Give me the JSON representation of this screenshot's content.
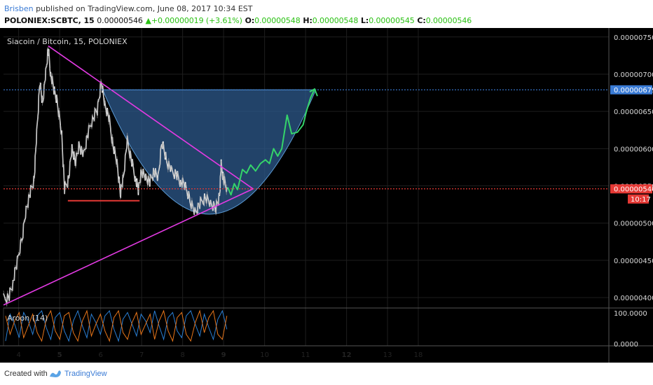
{
  "header": {
    "author": "Brisben",
    "published_text": "published on TradingView.com, June 08, 2017 10:34 EST",
    "symbol_label": "POLONIEX:SCBTC, 15",
    "last_price": "0.00000546",
    "change": "+0.00000019 (+3.61%)",
    "o_label": "O:",
    "o_value": "0.00000548",
    "h_label": "H:",
    "h_value": "0.00000548",
    "l_label": "L:",
    "l_value": "0.00000545",
    "c_label": "C:",
    "c_value": "0.00000546"
  },
  "chart_data": [
    {
      "type": "candlestick",
      "title": "Siacoin / Bitcoin, 15, POLONIEX",
      "x_tick_labels": [
        "4",
        "5",
        "6",
        "7",
        "8",
        "9",
        "10",
        "11",
        "12",
        "13",
        "18"
      ],
      "y_tick_labels": [
        "0.00000750",
        "0.00000700",
        "0.00000650",
        "0.00000600",
        "0.00000550",
        "0.00000500",
        "0.00000450",
        "0.00000400"
      ],
      "ylim": [
        3.86e-06,
        7.62e-06
      ],
      "xlim": [
        3.63,
        18.4
      ],
      "current_price_label": "0.00000546",
      "countdown_label": "10:17",
      "target_label": "0.00000679",
      "current_price": 5.46e-06,
      "target_price": 6.79e-06,
      "price_path": [
        [
          3.63,
          3.98e-06
        ],
        [
          3.76,
          4e-06
        ],
        [
          3.86,
          4.2e-06
        ],
        [
          3.95,
          4.45e-06
        ],
        [
          4.08,
          4.78e-06
        ],
        [
          4.18,
          5.18e-06
        ],
        [
          4.28,
          5.4e-06
        ],
        [
          4.38,
          5.6e-06
        ],
        [
          4.44,
          6.2e-06
        ],
        [
          4.52,
          6.9e-06
        ],
        [
          4.58,
          6.6e-06
        ],
        [
          4.66,
          7e-06
        ],
        [
          4.72,
          7.35e-06
        ],
        [
          4.78,
          7e-06
        ],
        [
          4.86,
          6.8e-06
        ],
        [
          4.95,
          6.6e-06
        ],
        [
          5.05,
          6.2e-06
        ],
        [
          5.12,
          5.45e-06
        ],
        [
          5.22,
          5.6e-06
        ],
        [
          5.3,
          6e-06
        ],
        [
          5.38,
          5.82e-06
        ],
        [
          5.48,
          6.05e-06
        ],
        [
          5.58,
          5.9e-06
        ],
        [
          5.68,
          6.18e-06
        ],
        [
          5.8,
          6.4e-06
        ],
        [
          5.92,
          6.52e-06
        ],
        [
          6.02,
          6.9e-06
        ],
        [
          6.1,
          6.6e-06
        ],
        [
          6.2,
          6.42e-06
        ],
        [
          6.3,
          6.05e-06
        ],
        [
          6.4,
          5.8e-06
        ],
        [
          6.48,
          5.4e-06
        ],
        [
          6.55,
          5.6e-06
        ],
        [
          6.65,
          6.1e-06
        ],
        [
          6.75,
          5.85e-06
        ],
        [
          6.85,
          5.6e-06
        ],
        [
          6.92,
          5.45e-06
        ],
        [
          7.0,
          5.7e-06
        ],
        [
          7.1,
          5.62e-06
        ],
        [
          7.2,
          5.55e-06
        ],
        [
          7.3,
          5.7e-06
        ],
        [
          7.4,
          5.6e-06
        ],
        [
          7.5,
          6.1e-06
        ],
        [
          7.6,
          5.85e-06
        ],
        [
          7.72,
          5.7e-06
        ],
        [
          7.85,
          5.65e-06
        ],
        [
          7.95,
          5.55e-06
        ],
        [
          8.05,
          5.52e-06
        ],
        [
          8.18,
          5.3e-06
        ],
        [
          8.3,
          5.15e-06
        ],
        [
          8.42,
          5.25e-06
        ],
        [
          8.55,
          5.35e-06
        ],
        [
          8.68,
          5.25e-06
        ],
        [
          8.8,
          5.2e-06
        ],
        [
          8.9,
          5.35e-06
        ],
        [
          8.94,
          5.78e-06
        ],
        [
          9.0,
          5.58e-06
        ],
        [
          9.08,
          5.48e-06
        ]
      ],
      "trendline_upper": [
        [
          4.72,
          7.38e-06
        ],
        [
          9.72,
          5.46e-06
        ]
      ],
      "trendline_lower": [
        [
          3.63,
          3.9e-06
        ],
        [
          9.72,
          5.46e-06
        ]
      ],
      "support_line": [
        [
          5.2,
          5.3e-06
        ],
        [
          6.95,
          5.3e-06
        ]
      ],
      "rounded_bottom_arc": {
        "x_start": 6.05,
        "x_end": 11.25,
        "top": 6.79e-06,
        "bottom": 5.12e-06
      },
      "forecast_path": [
        [
          9.1,
          5.48e-06
        ],
        [
          9.18,
          5.38e-06
        ],
        [
          9.26,
          5.53e-06
        ],
        [
          9.34,
          5.45e-06
        ],
        [
          9.46,
          5.72e-06
        ],
        [
          9.56,
          5.67e-06
        ],
        [
          9.66,
          5.78e-06
        ],
        [
          9.78,
          5.7e-06
        ],
        [
          9.9,
          5.8e-06
        ],
        [
          10.02,
          5.85e-06
        ],
        [
          10.12,
          5.8e-06
        ],
        [
          10.22,
          6e-06
        ],
        [
          10.32,
          5.9e-06
        ],
        [
          10.42,
          6e-06
        ],
        [
          10.55,
          6.45e-06
        ],
        [
          10.66,
          6.2e-06
        ],
        [
          10.8,
          6.22e-06
        ],
        [
          10.94,
          6.32e-06
        ],
        [
          11.02,
          6.5e-06
        ],
        [
          11.12,
          6.68e-06
        ],
        [
          11.22,
          6.8e-06
        ]
      ]
    },
    {
      "type": "line",
      "title": "Aroon (14)",
      "y_tick_labels": [
        "100.0000",
        "0.0000"
      ],
      "ylim": [
        0,
        100
      ],
      "series": [
        {
          "values": [
            10,
            90,
            60,
            20,
            95,
            70,
            30,
            85,
            100,
            50,
            15,
            80,
            95,
            40,
            10,
            70,
            100,
            55,
            20,
            90,
            65,
            30,
            85,
            100,
            45,
            10,
            75,
            95,
            60,
            25,
            90,
            70,
            35,
            100,
            55,
            15,
            80,
            95,
            40,
            20,
            85,
            100,
            60,
            25,
            90,
            50,
            15,
            75,
            100,
            45
          ]
        },
        {
          "values": [
            85,
            30,
            70,
            95,
            20,
            55,
            90,
            35,
            10,
            75,
            100,
            40,
            15,
            85,
            95,
            35,
            10,
            70,
            100,
            25,
            60,
            90,
            40,
            10,
            80,
            100,
            35,
            15,
            65,
            95,
            30,
            60,
            90,
            15,
            70,
            100,
            40,
            10,
            80,
            95,
            30,
            10,
            65,
            100,
            35,
            80,
            100,
            30,
            15,
            85
          ]
        }
      ]
    }
  ],
  "footer": {
    "created_with": "Created with",
    "brand": "TradingView"
  },
  "colors": {
    "background": "#000000",
    "grid": "#1e1e1e",
    "candles": "#f2f2f2",
    "trendline": "#e33ae3",
    "support": "#e53935",
    "arc_fill": "#2d5a8c",
    "arc_stroke": "#5b9bd5",
    "forecast": "#35d46a",
    "current_price": "#e53935",
    "target": "#3a7bd5",
    "aroon_up": "#2a7fd4",
    "aroon_down": "#e8761a"
  }
}
